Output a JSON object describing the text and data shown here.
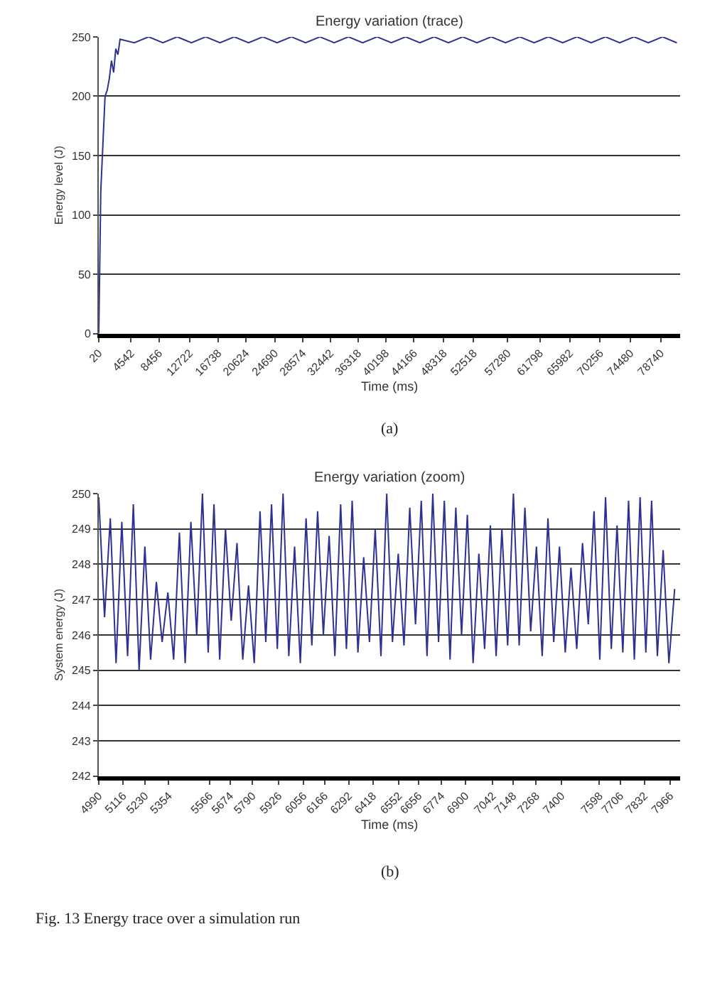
{
  "chart_data": [
    {
      "type": "line",
      "title": "Energy variation (trace)",
      "xlabel": "Time (ms)",
      "ylabel": "Energy level (J)",
      "annotations": [
        "(a)"
      ],
      "series": [
        {
          "color": "#2e3192",
          "x": [
            20,
            300,
            600,
            900,
            1200,
            1500,
            1800,
            2100,
            2400,
            2700,
            3000,
            5000,
            7000,
            9000,
            11000,
            13000,
            15000,
            17000,
            19000,
            21000,
            23000,
            25000,
            27000,
            29000,
            31000,
            33000,
            35000,
            37000,
            39000,
            41000,
            43000,
            45000,
            47000,
            49000,
            51000,
            53000,
            55000,
            57000,
            59000,
            61000,
            63000,
            65000,
            67000,
            69000,
            71000,
            73000,
            75000,
            77000,
            79000,
            81000
          ],
          "values": [
            0,
            120,
            160,
            200,
            205,
            215,
            230,
            220,
            240,
            235,
            248,
            245,
            250,
            245,
            250,
            245,
            250,
            245,
            250,
            245,
            250,
            245,
            250,
            245,
            250,
            245,
            250,
            245,
            250,
            245,
            250,
            245,
            250,
            245,
            250,
            245,
            250,
            245,
            250,
            245,
            250,
            245,
            250,
            245,
            250,
            245,
            250,
            245,
            250,
            245
          ]
        }
      ],
      "xlim": [
        20,
        81500
      ],
      "xticks": [
        20,
        4542,
        8456,
        12722,
        16738,
        20624,
        24690,
        28574,
        32442,
        36318,
        40198,
        44166,
        48318,
        52518,
        57280,
        61798,
        65982,
        70256,
        74480,
        78740
      ],
      "ylim": [
        0,
        250
      ],
      "yticks": [
        0,
        50,
        100,
        150,
        200,
        250
      ],
      "grid": "y",
      "marker": "none",
      "line_style": "solid"
    },
    {
      "type": "line",
      "title": "Energy variation (zoom)",
      "xlabel": "Time (ms)",
      "ylabel": "System energy (J)",
      "annotations": [
        "(b)",
        "Fig. 13 Energy trace over a simulation run"
      ],
      "series": [
        {
          "color": "#2e3192",
          "x": [
            4990,
            5020,
            5050,
            5080,
            5110,
            5140,
            5170,
            5200,
            5230,
            5260,
            5290,
            5320,
            5350,
            5380,
            5410,
            5440,
            5470,
            5500,
            5530,
            5560,
            5590,
            5620,
            5650,
            5680,
            5710,
            5740,
            5770,
            5800,
            5830,
            5860,
            5890,
            5920,
            5950,
            5980,
            6010,
            6040,
            6070,
            6100,
            6130,
            6160,
            6190,
            6220,
            6250,
            6280,
            6310,
            6340,
            6370,
            6400,
            6430,
            6460,
            6490,
            6520,
            6550,
            6580,
            6610,
            6640,
            6670,
            6700,
            6730,
            6760,
            6790,
            6820,
            6850,
            6880,
            6910,
            6940,
            6970,
            7000,
            7030,
            7060,
            7090,
            7120,
            7150,
            7180,
            7210,
            7240,
            7270,
            7300,
            7330,
            7360,
            7390,
            7420,
            7450,
            7480,
            7510,
            7540,
            7570,
            7600,
            7630,
            7660,
            7690,
            7720,
            7750,
            7780,
            7810,
            7840,
            7870,
            7900,
            7930,
            7960,
            7990
          ],
          "values": [
            249.9,
            246.5,
            249.3,
            245.2,
            249.2,
            245.4,
            249.7,
            245,
            248.5,
            245.3,
            247.5,
            245.8,
            247.2,
            245.3,
            248.9,
            245.2,
            249.2,
            246,
            250,
            245.5,
            249.7,
            245.3,
            249,
            246.4,
            248.6,
            245.3,
            247.4,
            245.2,
            249.5,
            245.8,
            249.7,
            245.6,
            250,
            245.4,
            248.5,
            245.2,
            249.3,
            245.7,
            249.5,
            246,
            248.8,
            245.4,
            249.7,
            245.6,
            249.8,
            245.5,
            248.2,
            245.8,
            249,
            245.4,
            250,
            245.8,
            248.3,
            245.7,
            249.6,
            246.3,
            249.8,
            245.4,
            250,
            245.8,
            249.8,
            245.3,
            249.6,
            246,
            249.4,
            245.2,
            248.3,
            245.6,
            249.1,
            245.4,
            249,
            245.7,
            250,
            245.7,
            249.6,
            246.1,
            248.5,
            245.4,
            249.3,
            245.8,
            248.5,
            245.5,
            247.9,
            245.6,
            248.6,
            246.3,
            249.5,
            245.3,
            249.9,
            245.6,
            249.1,
            245.5,
            249.8,
            245.3,
            249.9,
            245.5,
            249.8,
            245.4,
            248.4,
            245.2,
            247.3
          ]
        }
      ],
      "xlim": [
        4990,
        8020
      ],
      "xticks": [
        4990,
        5116,
        5230,
        5354,
        5566,
        5674,
        5790,
        5926,
        6056,
        6166,
        6292,
        6418,
        6552,
        6656,
        6774,
        6900,
        7042,
        7148,
        7268,
        7400,
        7598,
        7706,
        7832,
        7966
      ],
      "ylim": [
        242,
        250
      ],
      "yticks": [
        242,
        243,
        244,
        245,
        246,
        247,
        248,
        249,
        250
      ],
      "grid": "y",
      "marker": "none",
      "line_style": "solid"
    }
  ]
}
